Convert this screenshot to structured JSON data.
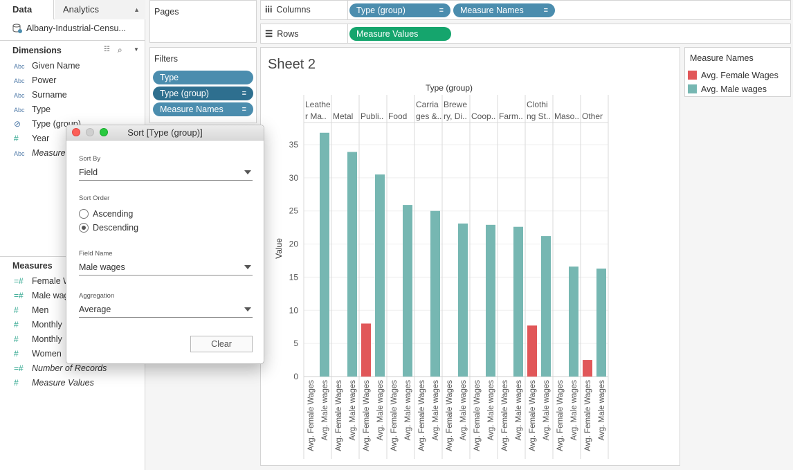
{
  "tabs": {
    "data_label": "Data",
    "analytics_label": "Analytics"
  },
  "datasource": {
    "name": "Albany-Industrial-Censu..."
  },
  "dimensions": {
    "title": "Dimensions",
    "items": [
      {
        "type": "Abc",
        "label": "Given Name"
      },
      {
        "type": "Abc",
        "label": "Power"
      },
      {
        "type": "Abc",
        "label": "Surname"
      },
      {
        "type": "Abc",
        "label": "Type"
      },
      {
        "type": "clip",
        "label": "Type (group)"
      },
      {
        "type": "#",
        "label": "Year"
      },
      {
        "type": "Abc",
        "label": "Measure Names"
      }
    ]
  },
  "measures": {
    "title": "Measures",
    "items": [
      {
        "type": "=#",
        "label": "Female Wages"
      },
      {
        "type": "=#",
        "label": "Male wages"
      },
      {
        "type": "#",
        "label": "Men"
      },
      {
        "type": "#",
        "label": "Monthly"
      },
      {
        "type": "#",
        "label": "Monthly"
      },
      {
        "type": "#",
        "label": "Women"
      },
      {
        "type": "=#",
        "label": "Number of Records"
      },
      {
        "type": "#",
        "label": "Measure Values"
      }
    ]
  },
  "shelves": {
    "pages_label": "Pages",
    "filters_label": "Filters",
    "filters": [
      "Type",
      "Type (group)",
      "Measure Names"
    ],
    "columns_label": "Columns",
    "columns": [
      "Type (group)",
      "Measure Names"
    ],
    "rows_label": "Rows",
    "rows": [
      "Measure Values"
    ]
  },
  "sheet": {
    "title": "Sheet 2"
  },
  "legend": {
    "title": "Measure Names",
    "items": [
      {
        "label": "Avg. Female Wages",
        "color": "#e15759"
      },
      {
        "label": "Avg. Male wages",
        "color": "#76b7b2"
      }
    ]
  },
  "dialog": {
    "title": "Sort [Type (group)]",
    "sort_by_label": "Sort By",
    "sort_by_value": "Field",
    "sort_order_label": "Sort Order",
    "ascending_label": "Ascending",
    "descending_label": "Descending",
    "selected_order": "Descending",
    "field_name_label": "Field Name",
    "field_name_value": "Male wages",
    "aggregation_label": "Aggregation",
    "aggregation_value": "Average",
    "clear_label": "Clear"
  },
  "chart_data": {
    "type": "bar",
    "title": "Type (group)",
    "ylabel": "Value",
    "ylim": [
      0,
      37
    ],
    "yticks": [
      0,
      5,
      10,
      15,
      20,
      25,
      30,
      35
    ],
    "headers": [
      [
        "Leathe",
        "r Ma.."
      ],
      [
        "Metal"
      ],
      [
        "Publi.."
      ],
      [
        "Food"
      ],
      [
        "Carria",
        "ges &.."
      ],
      [
        "Brewe",
        "ry, Di.."
      ],
      [
        "Coop.."
      ],
      [
        "Farm.."
      ],
      [
        "Clothi",
        "ng St.."
      ],
      [
        "Maso.."
      ],
      [
        "Other"
      ]
    ],
    "measure_labels": [
      "Avg. Female Wages",
      "Avg. Male wages"
    ],
    "series": [
      {
        "name": "Avg. Female Wages",
        "color": "#e15759",
        "values": [
          null,
          null,
          8.0,
          null,
          null,
          null,
          null,
          null,
          7.7,
          null,
          2.5
        ]
      },
      {
        "name": "Avg. Male wages",
        "color": "#76b7b2",
        "values": [
          36.8,
          33.9,
          30.5,
          25.9,
          25.0,
          23.1,
          22.9,
          22.6,
          21.2,
          16.6,
          16.3
        ]
      }
    ]
  }
}
